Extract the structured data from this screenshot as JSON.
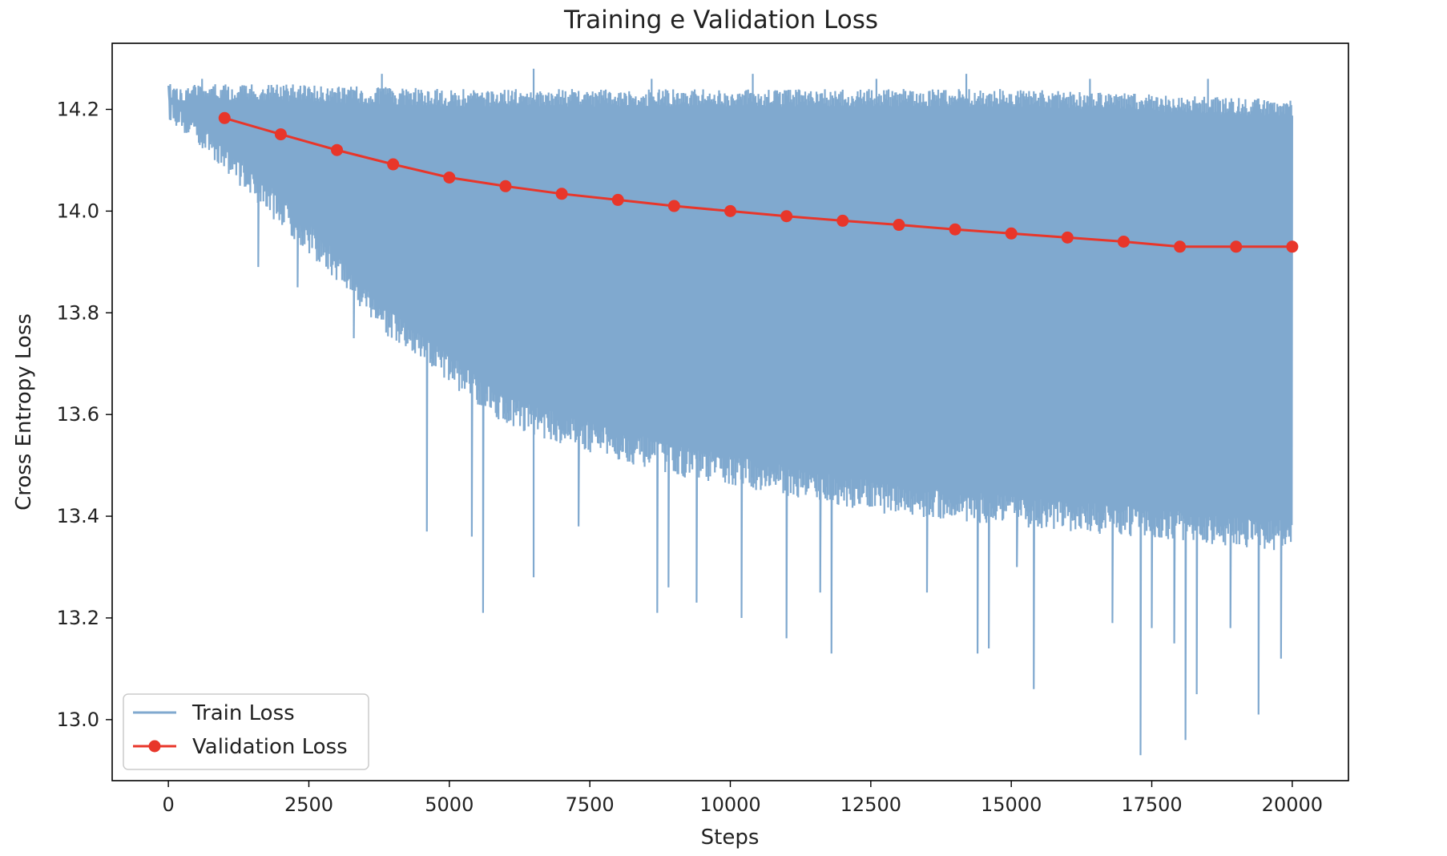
{
  "chart_data": {
    "type": "line",
    "title": "Training e Validation Loss",
    "xlabel": "Steps",
    "ylabel": "Cross Entropy Loss",
    "xlim": [
      -1000,
      21000
    ],
    "ylim": [
      12.88,
      14.33
    ],
    "xticks": [
      0,
      2500,
      5000,
      7500,
      10000,
      12500,
      15000,
      17500,
      20000
    ],
    "yticks": [
      13.0,
      13.2,
      13.4,
      13.6,
      13.8,
      14.0,
      14.2
    ],
    "grid": false,
    "legend_position": "lower-left",
    "series": [
      {
        "name": "Train Loss",
        "color": "#80a9cf",
        "x_start": 0,
        "x_end": 20000,
        "upper_envelope": [
          [
            0,
            14.25
          ],
          [
            2000,
            14.25
          ],
          [
            5000,
            14.24
          ],
          [
            10000,
            14.24
          ],
          [
            15000,
            14.24
          ],
          [
            20000,
            14.22
          ]
        ],
        "lower_envelope": [
          [
            0,
            14.18
          ],
          [
            1000,
            14.08
          ],
          [
            2000,
            13.97
          ],
          [
            3000,
            13.86
          ],
          [
            4000,
            13.74
          ],
          [
            5000,
            13.66
          ],
          [
            6000,
            13.58
          ],
          [
            7000,
            13.54
          ],
          [
            8000,
            13.51
          ],
          [
            9000,
            13.48
          ],
          [
            10000,
            13.46
          ],
          [
            11000,
            13.44
          ],
          [
            12000,
            13.42
          ],
          [
            13000,
            13.4
          ],
          [
            14000,
            13.39
          ],
          [
            15000,
            13.38
          ],
          [
            16000,
            13.37
          ],
          [
            17000,
            13.36
          ],
          [
            18000,
            13.35
          ],
          [
            19000,
            13.34
          ],
          [
            20000,
            13.33
          ]
        ],
        "spikes_down": [
          [
            1600,
            13.89
          ],
          [
            2300,
            13.85
          ],
          [
            3300,
            13.75
          ],
          [
            4600,
            13.37
          ],
          [
            5400,
            13.36
          ],
          [
            5600,
            13.21
          ],
          [
            6500,
            13.28
          ],
          [
            7300,
            13.38
          ],
          [
            8700,
            13.21
          ],
          [
            8900,
            13.26
          ],
          [
            9400,
            13.23
          ],
          [
            10200,
            13.2
          ],
          [
            11000,
            13.16
          ],
          [
            11600,
            13.25
          ],
          [
            11800,
            13.13
          ],
          [
            13500,
            13.25
          ],
          [
            14400,
            13.13
          ],
          [
            14600,
            13.14
          ],
          [
            15100,
            13.3
          ],
          [
            15400,
            13.06
          ],
          [
            16800,
            13.19
          ],
          [
            17300,
            12.93
          ],
          [
            17500,
            13.18
          ],
          [
            17900,
            13.15
          ],
          [
            18100,
            12.96
          ],
          [
            18300,
            13.05
          ],
          [
            18900,
            13.18
          ],
          [
            19400,
            13.01
          ],
          [
            19800,
            13.12
          ]
        ],
        "spikes_up": [
          [
            600,
            14.26
          ],
          [
            3800,
            14.27
          ],
          [
            6500,
            14.28
          ],
          [
            8600,
            14.26
          ],
          [
            10400,
            14.27
          ],
          [
            12600,
            14.26
          ],
          [
            14200,
            14.27
          ],
          [
            16400,
            14.26
          ],
          [
            18500,
            14.26
          ]
        ]
      },
      {
        "name": "Validation Loss",
        "color": "#e8362a",
        "marker": "circle",
        "x": [
          1000,
          2000,
          3000,
          4000,
          5000,
          6000,
          7000,
          8000,
          9000,
          10000,
          11000,
          12000,
          13000,
          14000,
          15000,
          16000,
          17000,
          18000,
          19000,
          20000
        ],
        "y": [
          14.183,
          14.151,
          14.12,
          14.092,
          14.066,
          14.049,
          14.034,
          14.022,
          14.01,
          14.0,
          13.99,
          13.981,
          13.973,
          13.964,
          13.956,
          13.948,
          13.94,
          13.93,
          13.93,
          13.93
        ]
      }
    ]
  }
}
